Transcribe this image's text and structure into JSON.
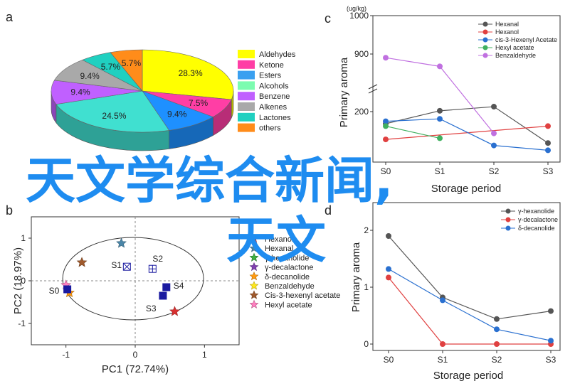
{
  "panels": {
    "a": "a",
    "b": "b",
    "c": "c",
    "d": "d"
  },
  "overlay": {
    "line1": "天文学综合新闻,",
    "line2": "天文"
  },
  "chart_data": [
    {
      "id": "a",
      "type": "pie",
      "categories": [
        "Aldehydes",
        "Ketone",
        "Esters",
        "Alcohols",
        "Benzene",
        "Alkenes",
        "Lactones",
        "others"
      ],
      "values": [
        28.3,
        7.5,
        9.4,
        24.5,
        9.4,
        9.4,
        5.7,
        5.7
      ],
      "labels": [
        "28.3%",
        "7.5%",
        "9.4%",
        "24.5%",
        "9.4%",
        "9.4%",
        "5.7%",
        "5.7%"
      ],
      "colors": [
        "#ffff00",
        "#ff3ea5",
        "#1e90ff",
        "#40e0d0",
        "#c060ff",
        "#a9a9a9",
        "#20d0c0",
        "#ff8c1a"
      ],
      "legend": [
        "Aldehydes",
        "Ketone",
        "Esters",
        "Alcohols",
        "Benzene",
        "Alkenes",
        "Lactones",
        "others"
      ],
      "legend_colors": [
        "#ffff00",
        "#ff3ea5",
        "#3aa0f0",
        "#7cfcb0",
        "#c060ff",
        "#a9a9a9",
        "#20d0c0",
        "#ff8c1a"
      ]
    },
    {
      "id": "b",
      "type": "scatter",
      "xlabel": "PC1 (72.74%)",
      "ylabel": "PC2 (18.97%)",
      "xlim": [
        -1.5,
        1.5
      ],
      "ylim": [
        -1.5,
        1.5
      ],
      "xticks": [
        "-1",
        "0",
        "1"
      ],
      "yticks": [
        "1",
        "0",
        "-1"
      ],
      "xticks_v": [
        -1,
        0,
        1
      ],
      "yticks_v": [
        1,
        0,
        -1
      ],
      "samples": [
        {
          "label": "S0",
          "x": -0.98,
          "y": -0.2,
          "color": "#1a1aa0",
          "marker": "square"
        },
        {
          "label": "S1",
          "x": -0.12,
          "y": 0.33,
          "color": "#1a1aa0",
          "marker": "xsquare"
        },
        {
          "label": "S2",
          "x": 0.25,
          "y": 0.28,
          "color": "#1a1aa0",
          "marker": "plussquare"
        },
        {
          "label": "S3",
          "x": 0.4,
          "y": -0.35,
          "color": "#1a1aa0",
          "marker": "square"
        },
        {
          "label": "S4",
          "x": 0.45,
          "y": -0.15,
          "color": "#1a1aa0",
          "marker": "square"
        }
      ],
      "variables": [
        {
          "name": "Hexanol",
          "x": 0.57,
          "y": -0.72,
          "color": "#d93030"
        },
        {
          "name": "Hexanal",
          "x": -0.2,
          "y": 0.88,
          "color": "#4a86a8"
        },
        {
          "name": "γ-hexanolide",
          "x": 0.0,
          "y": 0.0,
          "color": "#40b040"
        },
        {
          "name": "γ-decalactone",
          "x": 0.0,
          "y": 0.0,
          "color": "#8040b0"
        },
        {
          "name": "δ-decanolide",
          "x": -0.95,
          "y": -0.28,
          "color": "#ff9a10"
        },
        {
          "name": "Benzaldehyde",
          "x": 0.0,
          "y": 0.0,
          "color": "#ffe820"
        },
        {
          "name": "Cis-3-hexenyl acetate",
          "x": -0.77,
          "y": 0.43,
          "color": "#a05a2c"
        },
        {
          "name": "Hexyl acetate",
          "x": -1.0,
          "y": -0.1,
          "color": "#ff80c0"
        }
      ]
    },
    {
      "id": "c",
      "type": "line",
      "unit": "(ug/kg)",
      "xlabel": "Storage period",
      "ylabel": "Primary aroma",
      "categories": [
        "S0",
        "S1",
        "S2",
        "S3"
      ],
      "yticks": [
        "1000",
        "900",
        "200"
      ],
      "series": [
        {
          "name": "Hexanal",
          "values": [
            150,
            210,
            260,
            70
          ],
          "color": "#555555"
        },
        {
          "name": "Hexanol",
          "values": [
            85,
            null,
            null,
            140
          ],
          "color": "#e04040"
        },
        {
          "name": "cis-3-Hexenyl Acetate",
          "values": [
            160,
            170,
            60,
            40
          ],
          "color": "#2a70d0"
        },
        {
          "name": "Hexyl acetate",
          "values": [
            140,
            90,
            null,
            null
          ],
          "color": "#40b060"
        },
        {
          "name": "Benzaldehyde",
          "values": [
            855,
            750,
            110,
            null
          ],
          "color": "#c070e0"
        }
      ]
    },
    {
      "id": "d",
      "type": "line",
      "xlabel": "Storage period",
      "ylabel": "Primary aroma",
      "categories": [
        "S0",
        "S1",
        "S2",
        "S3"
      ],
      "ylim": [
        0,
        2
      ],
      "yticks": [
        "0",
        "1",
        "2"
      ],
      "series": [
        {
          "name": "γ-hexanolide",
          "values": [
            1.9,
            0.82,
            0.44,
            0.58
          ],
          "color": "#555555"
        },
        {
          "name": "γ-decalactone",
          "values": [
            1.17,
            0,
            0,
            0
          ],
          "color": "#e04040"
        },
        {
          "name": "δ-decanolide",
          "values": [
            1.32,
            0.77,
            0.26,
            0.06
          ],
          "color": "#2a70d0"
        }
      ]
    }
  ]
}
